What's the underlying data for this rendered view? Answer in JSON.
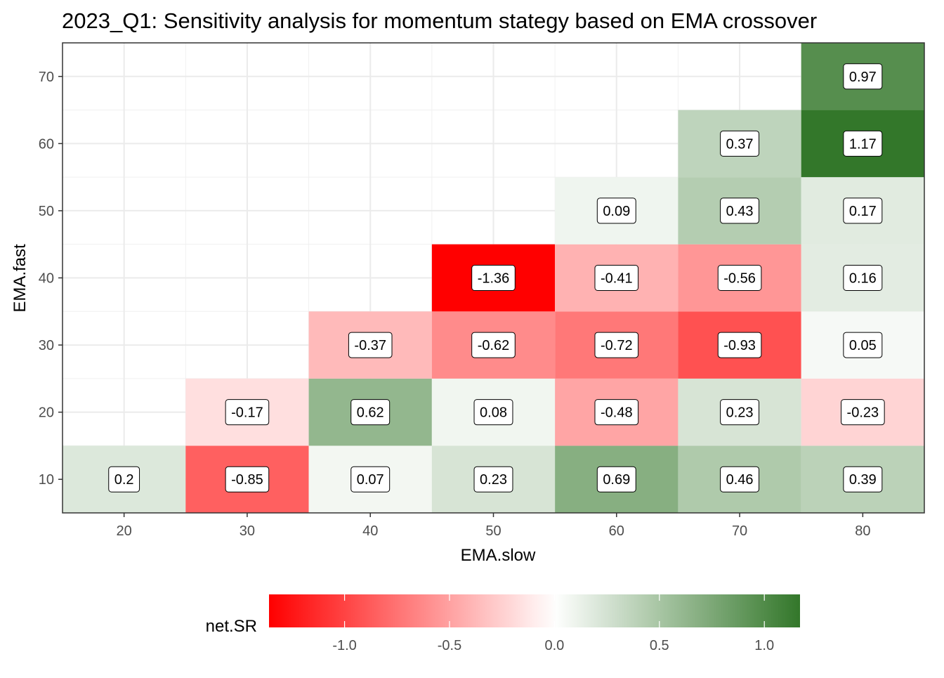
{
  "chart_data": {
    "type": "heatmap",
    "title": "2023_Q1: Sensitivity analysis for momentum stategy based on EMA crossover",
    "xlabel": "EMA.slow",
    "ylabel": "EMA.fast",
    "x_ticks": [
      "20",
      "30",
      "40",
      "50",
      "60",
      "70",
      "80"
    ],
    "y_ticks": [
      "10",
      "20",
      "30",
      "40",
      "50",
      "60",
      "70"
    ],
    "xlim": [
      15,
      85
    ],
    "ylim": [
      5,
      75
    ],
    "grid": true,
    "cells": [
      {
        "x": 20,
        "y": 10,
        "value": 0.2,
        "label": "0.2"
      },
      {
        "x": 30,
        "y": 10,
        "value": -0.85,
        "label": "-0.85"
      },
      {
        "x": 40,
        "y": 10,
        "value": 0.07,
        "label": "0.07"
      },
      {
        "x": 50,
        "y": 10,
        "value": 0.23,
        "label": "0.23"
      },
      {
        "x": 60,
        "y": 10,
        "value": 0.69,
        "label": "0.69"
      },
      {
        "x": 70,
        "y": 10,
        "value": 0.46,
        "label": "0.46"
      },
      {
        "x": 80,
        "y": 10,
        "value": 0.39,
        "label": "0.39"
      },
      {
        "x": 30,
        "y": 20,
        "value": -0.17,
        "label": "-0.17"
      },
      {
        "x": 40,
        "y": 20,
        "value": 0.62,
        "label": "0.62"
      },
      {
        "x": 50,
        "y": 20,
        "value": 0.08,
        "label": "0.08"
      },
      {
        "x": 60,
        "y": 20,
        "value": -0.48,
        "label": "-0.48"
      },
      {
        "x": 70,
        "y": 20,
        "value": 0.23,
        "label": "0.23"
      },
      {
        "x": 80,
        "y": 20,
        "value": -0.23,
        "label": "-0.23"
      },
      {
        "x": 40,
        "y": 30,
        "value": -0.37,
        "label": "-0.37"
      },
      {
        "x": 50,
        "y": 30,
        "value": -0.62,
        "label": "-0.62"
      },
      {
        "x": 60,
        "y": 30,
        "value": -0.72,
        "label": "-0.72"
      },
      {
        "x": 70,
        "y": 30,
        "value": -0.93,
        "label": "-0.93"
      },
      {
        "x": 80,
        "y": 30,
        "value": 0.05,
        "label": "0.05"
      },
      {
        "x": 50,
        "y": 40,
        "value": -1.36,
        "label": "-1.36"
      },
      {
        "x": 60,
        "y": 40,
        "value": -0.41,
        "label": "-0.41"
      },
      {
        "x": 70,
        "y": 40,
        "value": -0.56,
        "label": "-0.56"
      },
      {
        "x": 80,
        "y": 40,
        "value": 0.16,
        "label": "0.16"
      },
      {
        "x": 60,
        "y": 50,
        "value": 0.09,
        "label": "0.09"
      },
      {
        "x": 70,
        "y": 50,
        "value": 0.43,
        "label": "0.43"
      },
      {
        "x": 80,
        "y": 50,
        "value": 0.17,
        "label": "0.17"
      },
      {
        "x": 70,
        "y": 60,
        "value": 0.37,
        "label": "0.37"
      },
      {
        "x": 80,
        "y": 60,
        "value": 1.17,
        "label": "1.17"
      },
      {
        "x": 80,
        "y": 70,
        "value": 0.97,
        "label": "0.97"
      }
    ],
    "legend": {
      "title": "net.SR",
      "position": "bottom",
      "ticks": [
        "-1.0",
        "-0.5",
        "0.0",
        "0.5",
        "1.0"
      ],
      "tick_values": [
        -1.0,
        -0.5,
        0.0,
        0.5,
        1.0
      ],
      "range": [
        -1.36,
        1.17
      ],
      "low_color": "#ff0000",
      "mid_color": "#ffffff",
      "high_color": "#33772a"
    }
  }
}
